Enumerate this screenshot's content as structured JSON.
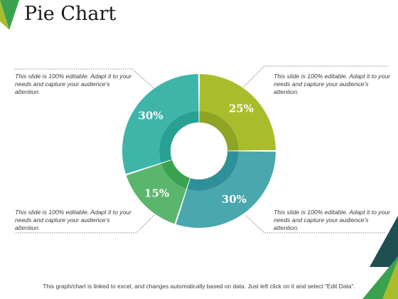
{
  "slide": {
    "title": "Pie Chart",
    "notes": {
      "top_left": "This slide is 100% editable.  Adapt it to your needs and capture your audience's attention.",
      "top_right": "This slide is 100% editable.  Adapt it to your needs and capture your audience's attention.",
      "bottom_left": "This slide is 100% editable.  Adapt it to your needs and capture your audience's attention.",
      "bottom_right": "This slide is 100% editable.  Adapt it to your needs and capture your audience's attention."
    },
    "footer": "This graph/chart is linked to excel, and changes automatically based on data. Just left click on it and select \"Edit Data\"."
  },
  "chart_data": {
    "type": "pie",
    "variant": "donut",
    "slices": [
      {
        "value": 25,
        "label": "25%",
        "color": "#a9bd2c",
        "inner_color": "#8fa424"
      },
      {
        "value": 30,
        "label": "30%",
        "color": "#4aa7ad",
        "inner_color": "#2e9098"
      },
      {
        "value": 15,
        "label": "15%",
        "color": "#5bb66d",
        "inner_color": "#3aa24f"
      },
      {
        "value": 30,
        "label": "30%",
        "color": "#3fb5aa",
        "inner_color": "#28a094"
      }
    ]
  },
  "colors": {
    "accent_green": "#3aa24f",
    "accent_dark": "#1f4f52",
    "accent_lime": "#a9bd2c",
    "leader_line": "#666666"
  }
}
